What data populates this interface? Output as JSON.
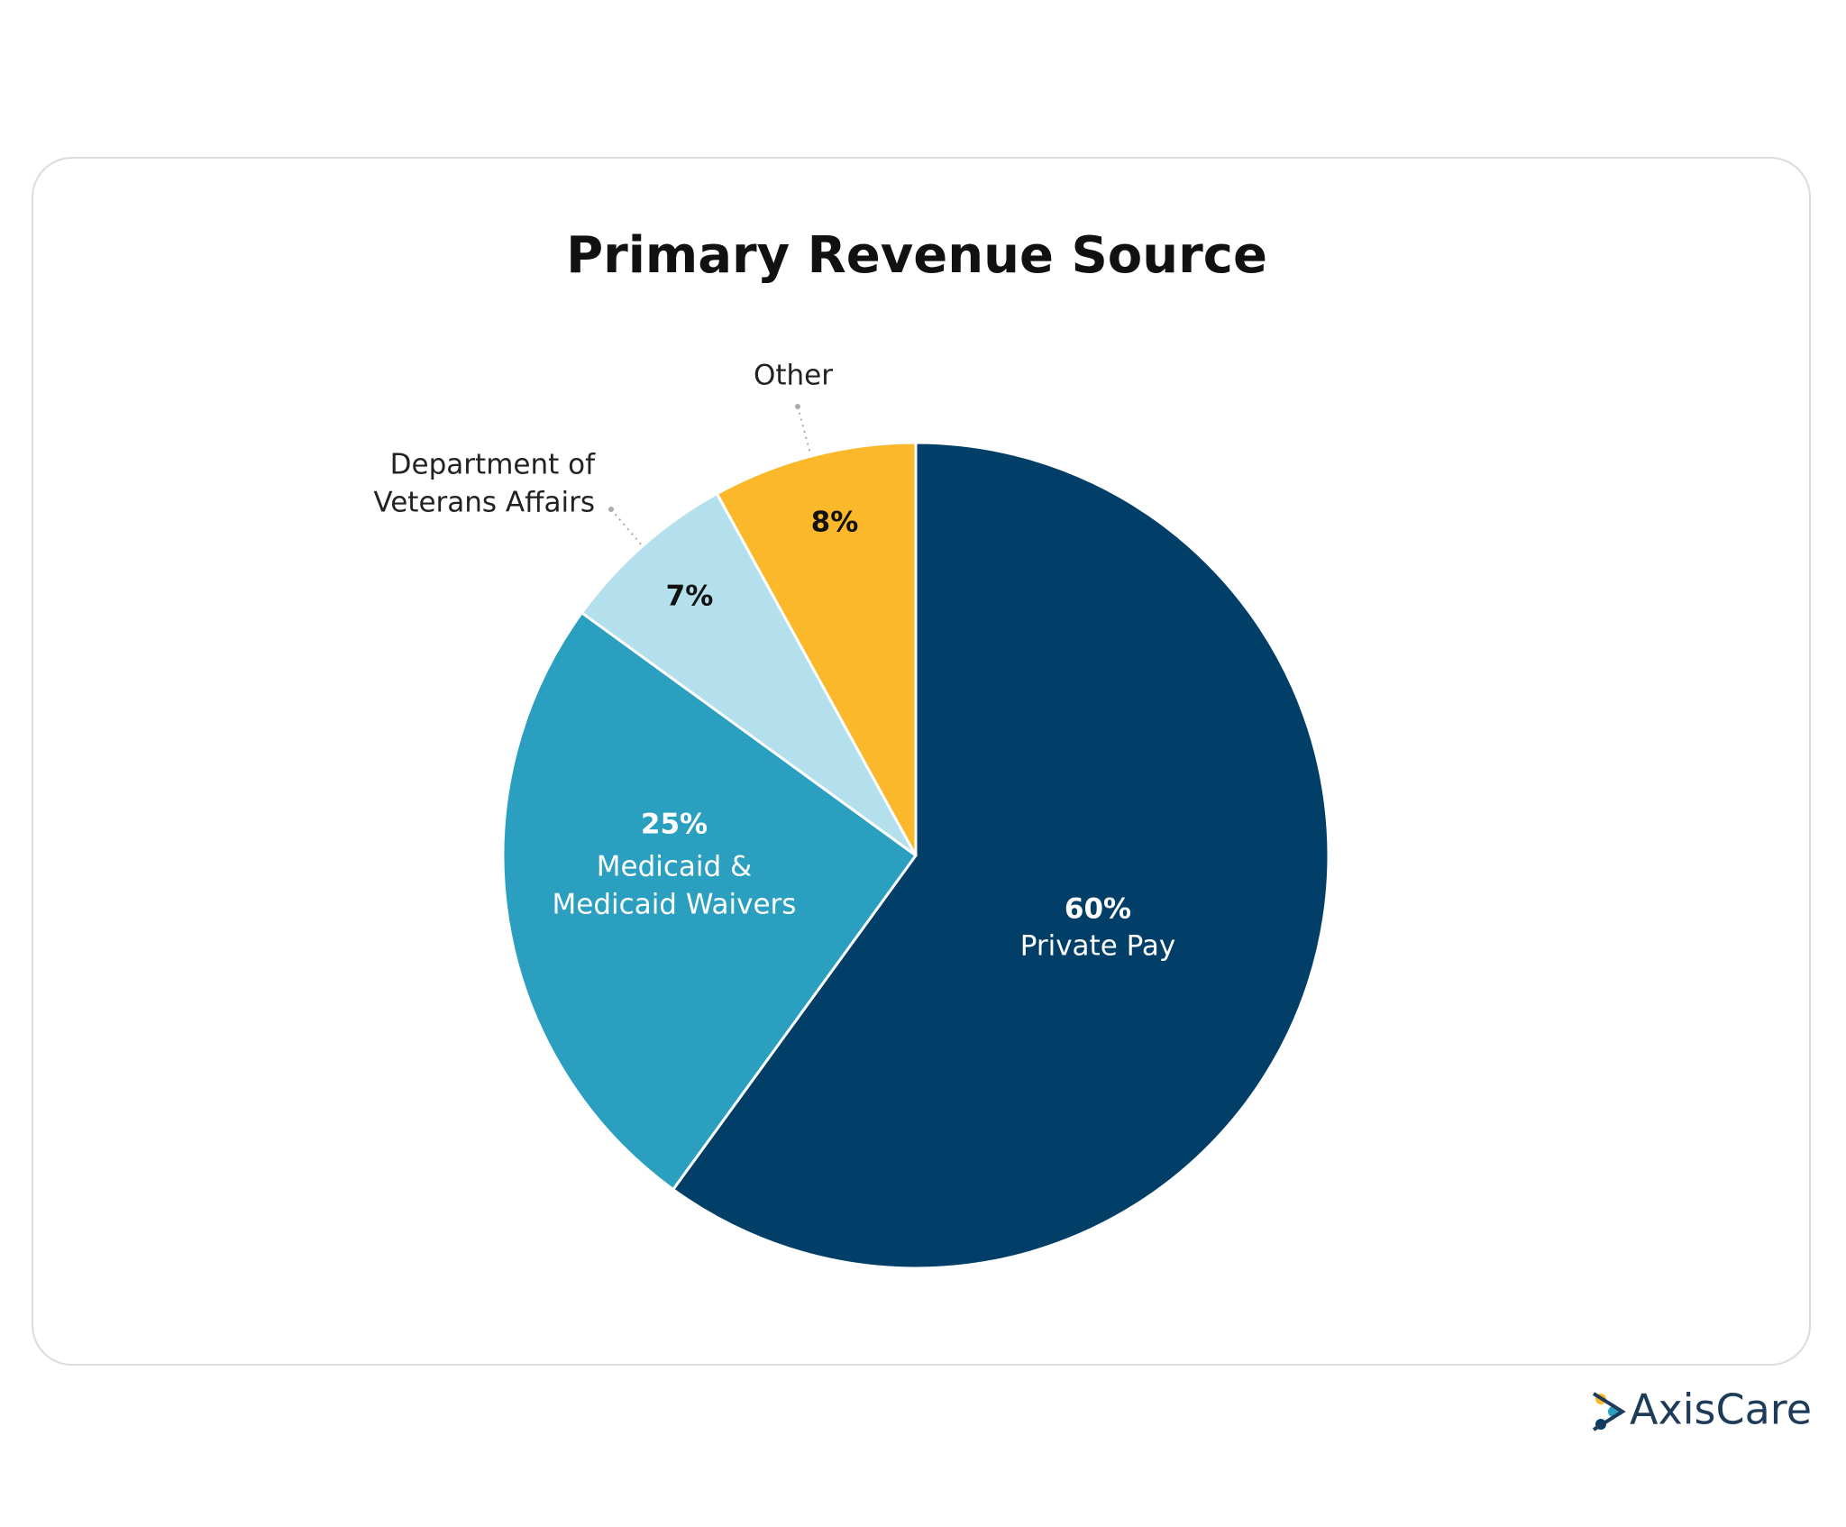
{
  "chart_data": {
    "type": "pie",
    "title": "Primary Revenue Source",
    "categories": [
      [
        "Private Pay"
      ],
      [
        "Medicaid &",
        "Medicaid Waivers"
      ],
      [
        "Department of",
        "Veterans Affairs"
      ],
      [
        "Other"
      ]
    ],
    "values": [
      60,
      25,
      7,
      8
    ],
    "value_labels": [
      "60%",
      "25%",
      "7%",
      "8%"
    ],
    "colors": [
      "#023f68",
      "#2b9fbf",
      "#b3e0ec",
      "#fbb82b"
    ]
  },
  "brand": "AxisCare"
}
